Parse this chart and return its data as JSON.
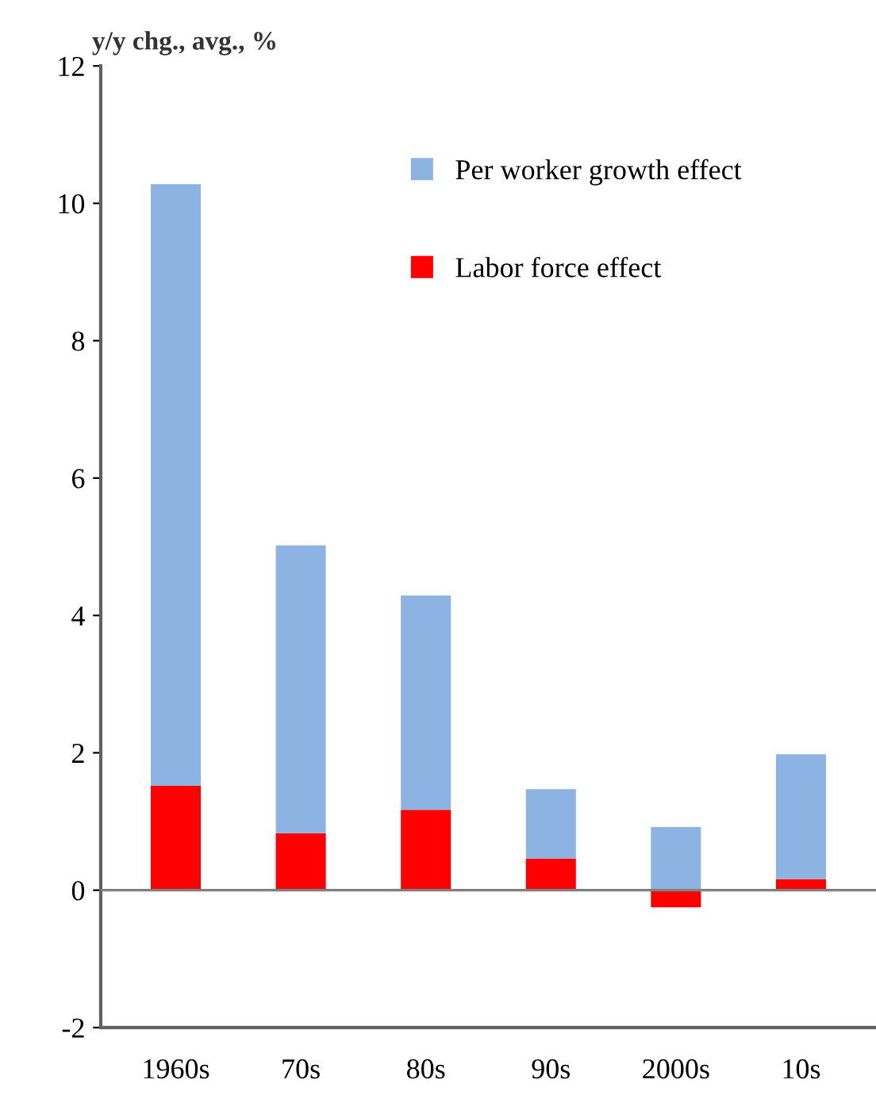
{
  "chart_data": {
    "type": "bar",
    "stacked": true,
    "ylabel": "y/y chg., avg., %",
    "categories": [
      "1960s",
      "70s",
      "80s",
      "90s",
      "2000s",
      "10s"
    ],
    "series": [
      {
        "name": "Labor force effect",
        "color": "#ff0000",
        "values": [
          1.52,
          0.83,
          1.17,
          0.46,
          -0.25,
          0.16
        ]
      },
      {
        "name": "Per worker growth effect",
        "color": "#8db3e2",
        "values": [
          8.76,
          4.19,
          3.12,
          1.01,
          0.92,
          1.82
        ]
      }
    ],
    "ylim": [
      -2,
      12
    ],
    "yticks": [
      -2,
      0,
      2,
      4,
      6,
      8,
      10,
      12
    ],
    "grid": false,
    "legend": "top right",
    "ref_lines": [
      {
        "axis": "y",
        "value": 0,
        "color": "#808080"
      }
    ]
  }
}
